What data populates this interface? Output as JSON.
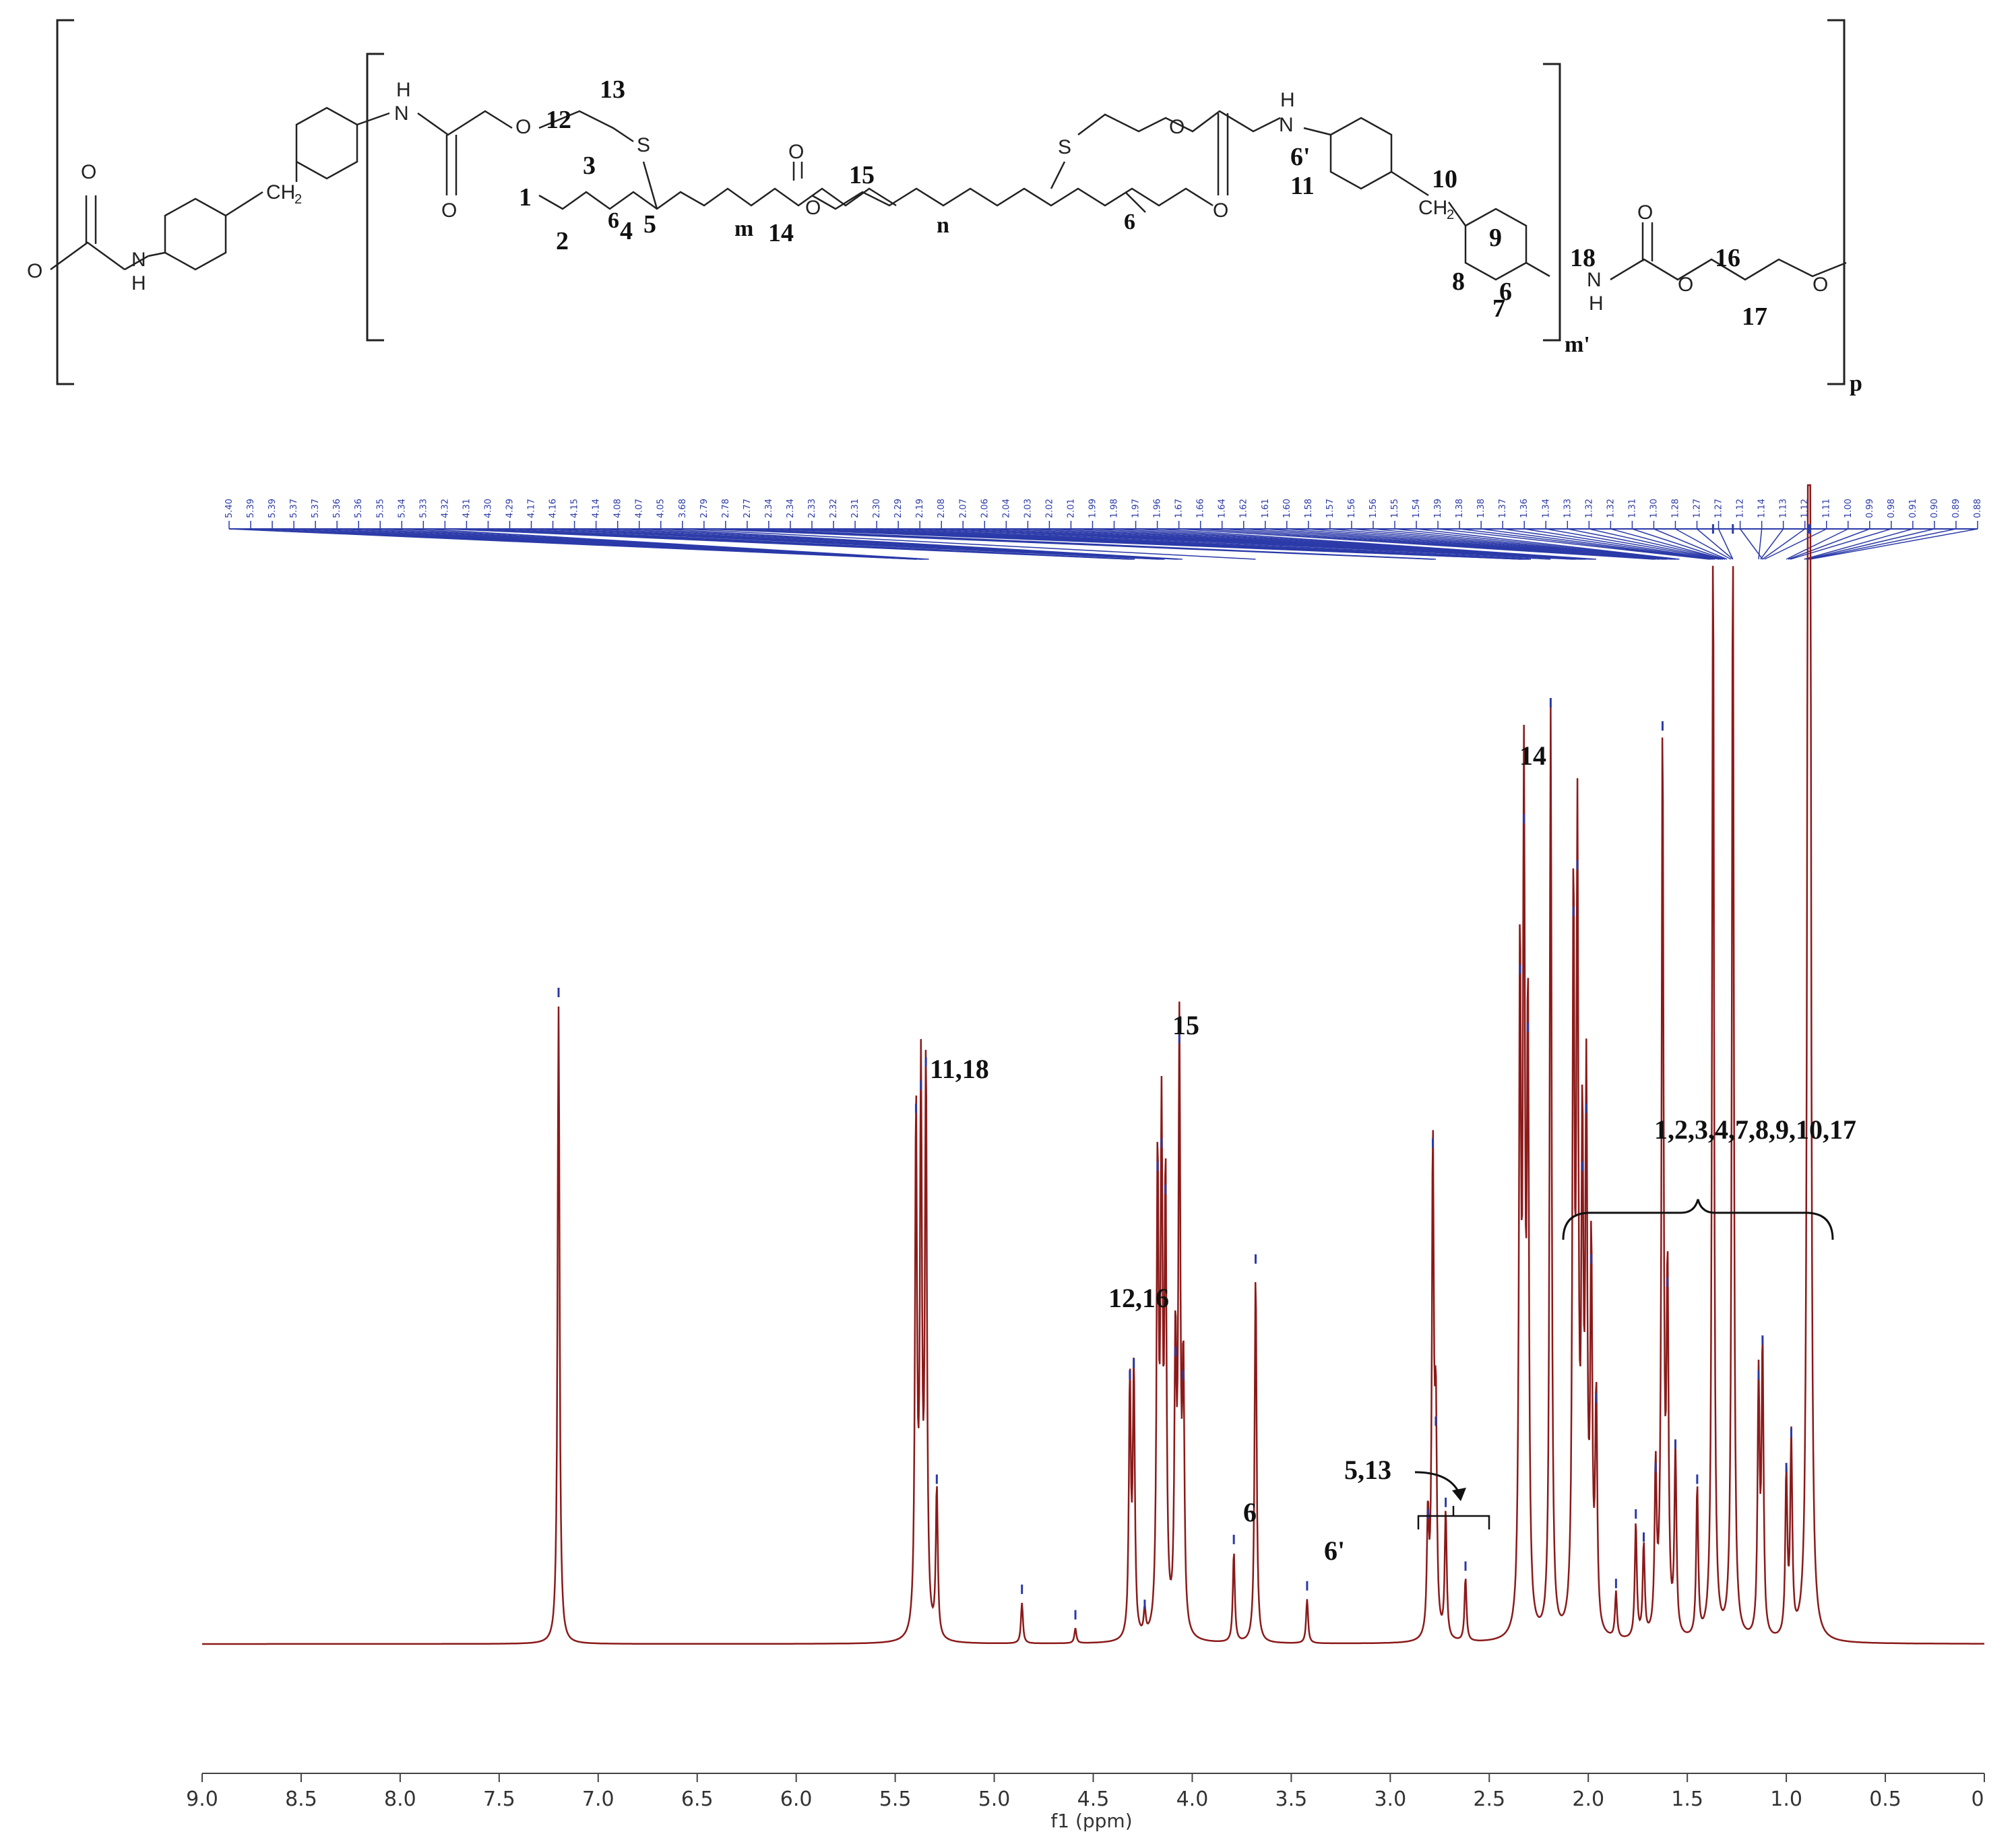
{
  "structure": {
    "atoms": {
      "o_left": "O",
      "nh_left": "H",
      "n_left": "N",
      "ch2_left": "CH",
      "ch2_left_sub": "2",
      "n1": "N",
      "h1": "H",
      "o_carb1": "O",
      "o_ester1": "O",
      "s1": "S",
      "o_carb2": "O",
      "o_ester2": "O",
      "s2": "S",
      "o_ester3": "O",
      "o_carb3": "O",
      "n2": "N",
      "h2": "H",
      "ch2_right": "CH",
      "ch2_right_sub": "2",
      "n3": "N",
      "h3": "H",
      "o_carb4": "O",
      "o_ester4": "O",
      "o_end": "O"
    },
    "numbers": {
      "n1": "1",
      "n2": "2",
      "n3": "3",
      "n4": "4",
      "n5": "5",
      "n6": "6",
      "n6p": "6'",
      "n7": "7",
      "n8": "8",
      "n9": "9",
      "n10": "10",
      "n11": "11",
      "n12": "12",
      "n13": "13",
      "n14": "14",
      "n15": "15",
      "n16": "16",
      "n17": "17",
      "n18": "18"
    },
    "repeats": {
      "six_a": "6",
      "six_b": "6",
      "m": "m",
      "n": "n",
      "m_prime": "m'",
      "p": "p"
    }
  },
  "peak_labels": {
    "l_11_18": "11,18",
    "l_15": "15",
    "l_12_16": "12,16",
    "l_6": "6",
    "l_6p": "6'",
    "l_5_13": "5,13",
    "l_14": "14",
    "l_group": "1,2,3,4,7,8,9,10,17"
  },
  "chart_data": {
    "type": "line",
    "xlabel": "f1 (ppm)",
    "xlim": [
      9.0,
      0.0
    ],
    "x_reversed": true,
    "x_ticks": [
      "9.0",
      "8.5",
      "8.0",
      "7.5",
      "7.0",
      "6.5",
      "6.0",
      "5.5",
      "5.0",
      "4.5",
      "4.0",
      "3.5",
      "3.0",
      "2.5",
      "2.0",
      "1.5",
      "1.0",
      "0.5",
      "0"
    ],
    "line_color": "#8b1a1a",
    "peak_list_color": "#2b3aa8",
    "peak_list": [
      "5.40",
      "5.39",
      "5.39",
      "5.37",
      "5.37",
      "5.36",
      "5.36",
      "5.35",
      "5.34",
      "5.33",
      "4.32",
      "4.31",
      "4.30",
      "4.29",
      "4.17",
      "4.16",
      "4.15",
      "4.14",
      "4.08",
      "4.07",
      "4.05",
      "3.68",
      "2.79",
      "2.78",
      "2.77",
      "2.34",
      "2.34",
      "2.33",
      "2.32",
      "2.31",
      "2.30",
      "2.29",
      "2.19",
      "2.08",
      "2.07",
      "2.06",
      "2.04",
      "2.03",
      "2.02",
      "2.01",
      "1.99",
      "1.98",
      "1.97",
      "1.96",
      "1.67",
      "1.66",
      "1.64",
      "1.62",
      "1.61",
      "1.60",
      "1.58",
      "1.57",
      "1.56",
      "1.56",
      "1.55",
      "1.54",
      "1.39",
      "1.38",
      "1.38",
      "1.37",
      "1.36",
      "1.34",
      "1.33",
      "1.32",
      "1.32",
      "1.31",
      "1.30",
      "1.28",
      "1.27",
      "1.27",
      "1.12",
      "1.14",
      "1.13",
      "1.12",
      "1.11",
      "1.00",
      "0.99",
      "0.98",
      "0.91",
      "0.90",
      "0.89",
      "0.88"
    ],
    "peaks": [
      {
        "ppm": 7.2,
        "height": 0.55
      },
      {
        "ppm": 5.395,
        "height": 0.45
      },
      {
        "ppm": 5.37,
        "height": 0.47
      },
      {
        "ppm": 5.345,
        "height": 0.49
      },
      {
        "ppm": 5.29,
        "height": 0.13
      },
      {
        "ppm": 4.86,
        "height": 0.035
      },
      {
        "ppm": 4.59,
        "height": 0.013
      },
      {
        "ppm": 4.315,
        "height": 0.22
      },
      {
        "ppm": 4.295,
        "height": 0.23
      },
      {
        "ppm": 4.24,
        "height": 0.022
      },
      {
        "ppm": 4.175,
        "height": 0.4
      },
      {
        "ppm": 4.155,
        "height": 0.42
      },
      {
        "ppm": 4.135,
        "height": 0.38
      },
      {
        "ppm": 4.085,
        "height": 0.24
      },
      {
        "ppm": 4.065,
        "height": 0.51
      },
      {
        "ppm": 4.045,
        "height": 0.22
      },
      {
        "ppm": 3.79,
        "height": 0.078
      },
      {
        "ppm": 3.68,
        "height": 0.32
      },
      {
        "ppm": 3.42,
        "height": 0.038
      },
      {
        "ppm": 2.81,
        "height": 0.1
      },
      {
        "ppm": 2.785,
        "height": 0.42
      },
      {
        "ppm": 2.77,
        "height": 0.18
      },
      {
        "ppm": 2.72,
        "height": 0.11
      },
      {
        "ppm": 2.62,
        "height": 0.055
      },
      {
        "ppm": 2.345,
        "height": 0.57
      },
      {
        "ppm": 2.325,
        "height": 0.7
      },
      {
        "ppm": 2.305,
        "height": 0.52
      },
      {
        "ppm": 2.19,
        "height": 0.8
      },
      {
        "ppm": 2.075,
        "height": 0.62
      },
      {
        "ppm": 2.055,
        "height": 0.66
      },
      {
        "ppm": 2.03,
        "height": 0.4
      },
      {
        "ppm": 2.01,
        "height": 0.45
      },
      {
        "ppm": 1.985,
        "height": 0.32
      },
      {
        "ppm": 1.96,
        "height": 0.2
      },
      {
        "ppm": 1.86,
        "height": 0.04
      },
      {
        "ppm": 1.76,
        "height": 0.1
      },
      {
        "ppm": 1.72,
        "height": 0.08
      },
      {
        "ppm": 1.66,
        "height": 0.14
      },
      {
        "ppm": 1.625,
        "height": 0.78
      },
      {
        "ppm": 1.6,
        "height": 0.3
      },
      {
        "ppm": 1.56,
        "height": 0.16
      },
      {
        "ppm": 1.45,
        "height": 0.13
      },
      {
        "ppm": 1.37,
        "height": 0.95
      },
      {
        "ppm": 1.27,
        "height": 0.95
      },
      {
        "ppm": 1.14,
        "height": 0.22
      },
      {
        "ppm": 1.12,
        "height": 0.25
      },
      {
        "ppm": 1.0,
        "height": 0.14
      },
      {
        "ppm": 0.975,
        "height": 0.17
      },
      {
        "ppm": 0.89,
        "height": 0.95
      },
      {
        "ppm": 0.88,
        "height": 0.95
      }
    ]
  }
}
